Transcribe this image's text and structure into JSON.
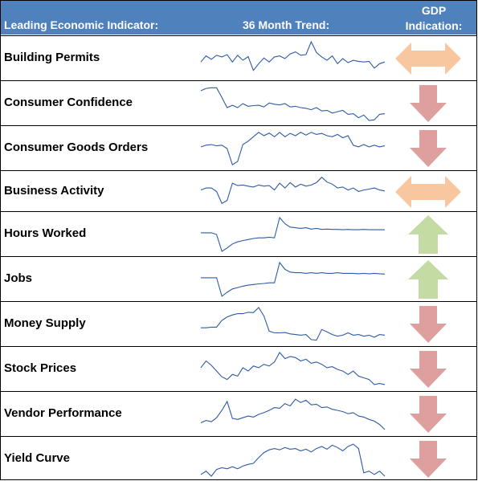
{
  "header": {
    "indicator_label": "Leading Economic Indicator:",
    "trend_label": "36 Month Trend:",
    "gdp_line1": "GDP",
    "gdp_line2": "Indication:"
  },
  "colors": {
    "header_bg": "#4f81bd",
    "line": "#2e5aa8",
    "up": "#c4dba4",
    "down": "#de9f9f",
    "neutral": "#f9c79f"
  },
  "rows": [
    {
      "name": "Building Permits",
      "indication": "neutral",
      "trend": [
        0.4,
        0.58,
        0.48,
        0.6,
        0.55,
        0.62,
        0.4,
        0.6,
        0.45,
        0.56,
        0.15,
        0.35,
        0.52,
        0.4,
        0.55,
        0.58,
        0.5,
        0.64,
        0.7,
        0.6,
        0.62,
        1.0,
        0.68,
        0.55,
        0.45,
        0.58,
        0.35,
        0.5,
        0.38,
        0.45,
        0.42,
        0.4,
        0.42,
        0.22,
        0.35,
        0.4
      ]
    },
    {
      "name": "Consumer Confidence",
      "indication": "down",
      "trend": [
        0.88,
        0.95,
        0.97,
        0.97,
        0.68,
        0.38,
        0.45,
        0.38,
        0.5,
        0.42,
        0.44,
        0.45,
        0.4,
        0.52,
        0.48,
        0.46,
        0.5,
        0.4,
        0.42,
        0.38,
        0.36,
        0.32,
        0.38,
        0.28,
        0.3,
        0.22,
        0.26,
        0.3,
        0.18,
        0.2,
        0.08,
        0.16,
        0.0,
        0.02,
        0.18,
        0.2
      ]
    },
    {
      "name": "Consumer Goods Orders",
      "indication": "down",
      "trend": [
        0.55,
        0.6,
        0.62,
        0.58,
        0.6,
        0.5,
        0.02,
        0.12,
        0.62,
        0.72,
        0.85,
        0.98,
        0.88,
        0.96,
        0.85,
        0.98,
        0.85,
        0.95,
        0.88,
        0.98,
        0.9,
        0.98,
        0.92,
        0.95,
        0.88,
        0.85,
        0.92,
        0.82,
        0.88,
        0.6,
        0.55,
        0.62,
        0.55,
        0.6,
        0.55,
        0.58
      ]
    },
    {
      "name": "Business Activity",
      "indication": "neutral",
      "trend": [
        0.55,
        0.62,
        0.62,
        0.5,
        0.1,
        0.2,
        0.78,
        0.7,
        0.72,
        0.68,
        0.65,
        0.72,
        0.68,
        0.7,
        0.55,
        0.78,
        0.62,
        0.8,
        0.65,
        0.75,
        0.68,
        0.72,
        0.8,
        0.98,
        0.82,
        0.75,
        0.62,
        0.65,
        0.55,
        0.62,
        0.5,
        0.55,
        0.58,
        0.62,
        0.55,
        0.52
      ]
    },
    {
      "name": "Hours Worked",
      "indication": "up",
      "trend": [
        0.55,
        0.55,
        0.55,
        0.5,
        0.0,
        0.1,
        0.22,
        0.28,
        0.32,
        0.35,
        0.38,
        0.4,
        0.4,
        0.42,
        0.4,
        1.0,
        0.82,
        0.72,
        0.7,
        0.68,
        0.7,
        0.66,
        0.68,
        0.65,
        0.66,
        0.65,
        0.65,
        0.64,
        0.65,
        0.64,
        0.64,
        0.65,
        0.64,
        0.64,
        0.64,
        0.64
      ]
    },
    {
      "name": "Jobs",
      "indication": "up",
      "trend": [
        0.55,
        0.55,
        0.55,
        0.55,
        0.0,
        0.12,
        0.22,
        0.26,
        0.3,
        0.33,
        0.35,
        0.37,
        0.38,
        0.4,
        0.4,
        1.0,
        0.8,
        0.72,
        0.7,
        0.7,
        0.68,
        0.7,
        0.68,
        0.7,
        0.68,
        0.68,
        0.7,
        0.68,
        0.68,
        0.68,
        0.67,
        0.68,
        0.67,
        0.68,
        0.67,
        0.66
      ]
    },
    {
      "name": "Money Supply",
      "indication": "down",
      "trend": [
        0.4,
        0.4,
        0.42,
        0.42,
        0.62,
        0.72,
        0.78,
        0.82,
        0.82,
        0.86,
        0.85,
        1.0,
        0.75,
        0.3,
        0.25,
        0.25,
        0.26,
        0.22,
        0.2,
        0.18,
        0.2,
        0.05,
        0.03,
        0.35,
        0.28,
        0.2,
        0.15,
        0.18,
        0.25,
        0.18,
        0.2,
        0.15,
        0.18,
        0.12,
        0.2,
        0.18
      ]
    },
    {
      "name": "Stock Prices",
      "indication": "down",
      "trend": [
        0.55,
        0.75,
        0.62,
        0.45,
        0.28,
        0.2,
        0.35,
        0.3,
        0.55,
        0.45,
        0.6,
        0.55,
        0.65,
        0.6,
        0.72,
        1.0,
        0.82,
        0.88,
        0.85,
        0.75,
        0.8,
        0.68,
        0.72,
        0.65,
        0.55,
        0.58,
        0.5,
        0.45,
        0.35,
        0.45,
        0.3,
        0.25,
        0.2,
        0.05,
        0.08,
        0.05
      ]
    },
    {
      "name": "Vendor Performance",
      "indication": "down",
      "trend": [
        0.25,
        0.32,
        0.28,
        0.4,
        0.62,
        0.88,
        0.38,
        0.35,
        0.4,
        0.45,
        0.42,
        0.5,
        0.55,
        0.62,
        0.7,
        0.68,
        0.82,
        0.75,
        0.95,
        0.85,
        0.92,
        0.78,
        0.8,
        0.7,
        0.72,
        0.65,
        0.62,
        0.58,
        0.52,
        0.55,
        0.45,
        0.42,
        0.35,
        0.3,
        0.2,
        0.05
      ]
    },
    {
      "name": "Yield Curve",
      "indication": "down",
      "trend": [
        0.05,
        0.15,
        0.0,
        0.2,
        0.25,
        0.22,
        0.28,
        0.22,
        0.3,
        0.35,
        0.38,
        0.55,
        0.7,
        0.78,
        0.82,
        0.78,
        0.85,
        0.8,
        0.82,
        0.75,
        0.8,
        0.72,
        0.82,
        0.88,
        0.8,
        0.92,
        0.85,
        0.75,
        0.88,
        0.95,
        0.82,
        0.1,
        0.15,
        0.05,
        0.15,
        0.0
      ]
    }
  ]
}
